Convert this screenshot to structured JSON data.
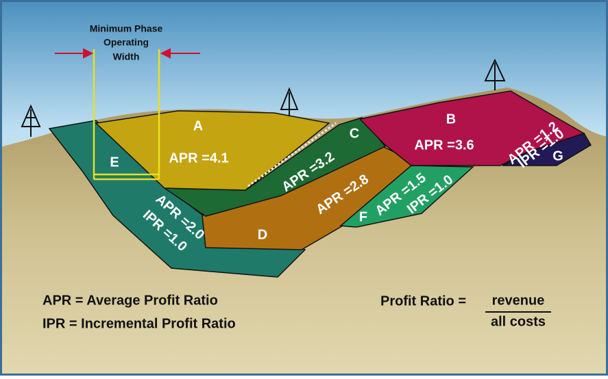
{
  "header": {
    "lines": [
      "Minimum Phase",
      "Operating",
      "Width"
    ]
  },
  "phases": [
    {
      "letter": "A",
      "labels": [
        "APR =4.1"
      ]
    },
    {
      "letter": "B",
      "labels": [
        "APR =3.6"
      ]
    },
    {
      "letter": "C",
      "labels": [
        "APR =3.2"
      ]
    },
    {
      "letter": "D",
      "labels": [
        "APR =2.8"
      ]
    },
    {
      "letter": "E",
      "labels": [
        "APR =2.0",
        "IPR =1.0"
      ]
    },
    {
      "letter": "F",
      "labels": [
        "APR =1.5",
        "IPR =1.0"
      ]
    },
    {
      "letter": "G",
      "labels": [
        "APR =1.2",
        "IPR =1.0"
      ]
    }
  ],
  "legend": [
    "APR = Average Profit Ratio",
    "IPR = Incremental Profit Ratio"
  ],
  "formula": {
    "lhs": "Profit Ratio =",
    "numerator": "revenue",
    "denominator": "all costs"
  }
}
